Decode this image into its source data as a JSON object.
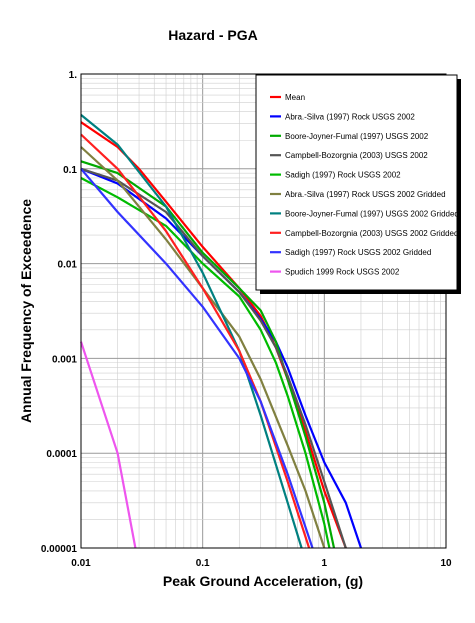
{
  "chart_data": {
    "type": "line",
    "title": "Hazard - PGA",
    "xlabel": "Peak Ground Acceleration, (g)",
    "ylabel": "Annual Frequency of Exceedence",
    "x_scale": "log",
    "y_scale": "log",
    "xlim": [
      0.01,
      10
    ],
    "ylim": [
      1e-05,
      1
    ],
    "x_ticks": [
      {
        "value": 0.01,
        "label": "0.01"
      },
      {
        "value": 0.1,
        "label": "0.1"
      },
      {
        "value": 1,
        "label": "1"
      },
      {
        "value": 10,
        "label": "10"
      }
    ],
    "y_ticks": [
      {
        "value": 1,
        "label": "1."
      },
      {
        "value": 0.1,
        "label": "0.1"
      },
      {
        "value": 0.01,
        "label": "0.01"
      },
      {
        "value": 0.001,
        "label": "0.001"
      },
      {
        "value": 0.0001,
        "label": "0.0001"
      },
      {
        "value": 1e-05,
        "label": "0.00001"
      }
    ],
    "grid": true,
    "legend_position": "top-right",
    "series": [
      {
        "name": "Mean",
        "color": "#ff0000",
        "points": [
          [
            0.01,
            0.31
          ],
          [
            0.02,
            0.17
          ],
          [
            0.03,
            0.1
          ],
          [
            0.05,
            0.045
          ],
          [
            0.1,
            0.015
          ],
          [
            0.2,
            0.0055
          ],
          [
            0.3,
            0.0028
          ],
          [
            0.4,
            0.0013
          ],
          [
            0.5,
            0.0006
          ],
          [
            0.7,
            0.00017
          ],
          [
            1.0,
            4e-05
          ],
          [
            1.5,
            1e-05
          ]
        ]
      },
      {
        "name": "Abra.-Silva (1997) Rock USGS 2002",
        "color": "#0000ff",
        "points": [
          [
            0.01,
            0.1
          ],
          [
            0.02,
            0.07
          ],
          [
            0.05,
            0.03
          ],
          [
            0.1,
            0.012
          ],
          [
            0.2,
            0.005
          ],
          [
            0.3,
            0.0026
          ],
          [
            0.4,
            0.0015
          ],
          [
            0.5,
            0.0008
          ],
          [
            0.7,
            0.00025
          ],
          [
            1.0,
            8e-05
          ],
          [
            1.5,
            3e-05
          ],
          [
            2.0,
            1e-05
          ]
        ]
      },
      {
        "name": "Boore-Joyner-Fumal (1997) USGS 2002",
        "color": "#00aa00",
        "points": [
          [
            0.01,
            0.12
          ],
          [
            0.02,
            0.09
          ],
          [
            0.05,
            0.04
          ],
          [
            0.1,
            0.013
          ],
          [
            0.2,
            0.0055
          ],
          [
            0.3,
            0.0032
          ],
          [
            0.4,
            0.0015
          ],
          [
            0.5,
            0.0006
          ],
          [
            0.7,
            0.00015
          ],
          [
            1.0,
            3e-05
          ],
          [
            1.2,
            1e-05
          ]
        ]
      },
      {
        "name": "Campbell-Bozorgnia (2003) USGS 2002",
        "color": "#555555",
        "points": [
          [
            0.01,
            0.1
          ],
          [
            0.02,
            0.075
          ],
          [
            0.05,
            0.035
          ],
          [
            0.1,
            0.012
          ],
          [
            0.2,
            0.005
          ],
          [
            0.3,
            0.0025
          ],
          [
            0.4,
            0.0013
          ],
          [
            0.5,
            0.00065
          ],
          [
            0.7,
            0.0002
          ],
          [
            1.0,
            5e-05
          ],
          [
            1.5,
            1e-05
          ]
        ]
      },
      {
        "name": "Sadigh (1997) Rock USGS 2002",
        "color": "#00bb00",
        "points": [
          [
            0.01,
            0.08
          ],
          [
            0.02,
            0.05
          ],
          [
            0.05,
            0.025
          ],
          [
            0.1,
            0.01
          ],
          [
            0.2,
            0.0045
          ],
          [
            0.3,
            0.002
          ],
          [
            0.4,
            0.0009
          ],
          [
            0.5,
            0.0004
          ],
          [
            0.7,
            0.0001
          ],
          [
            1.0,
            1.8e-05
          ],
          [
            1.1,
            1e-05
          ]
        ]
      },
      {
        "name": "Abra.-Silva (1997) Rock USGS 2002 Gridded",
        "color": "#808040",
        "points": [
          [
            0.01,
            0.17
          ],
          [
            0.02,
            0.075
          ],
          [
            0.05,
            0.018
          ],
          [
            0.1,
            0.0055
          ],
          [
            0.2,
            0.0017
          ],
          [
            0.3,
            0.0006
          ],
          [
            0.5,
            0.00012
          ],
          [
            0.7,
            4e-05
          ],
          [
            1.0,
            1e-05
          ]
        ]
      },
      {
        "name": "Boore-Joyner-Fumal (1997) USGS 2002 Gridded",
        "color": "#008080",
        "points": [
          [
            0.01,
            0.37
          ],
          [
            0.02,
            0.18
          ],
          [
            0.05,
            0.04
          ],
          [
            0.1,
            0.008
          ],
          [
            0.2,
            0.0012
          ],
          [
            0.3,
            0.00025
          ],
          [
            0.5,
            3e-05
          ],
          [
            0.65,
            1e-05
          ]
        ]
      },
      {
        "name": "Campbell-Bozorgnia (2003) USGS 2002 Gridded",
        "color": "#ff2020",
        "points": [
          [
            0.01,
            0.23
          ],
          [
            0.02,
            0.1
          ],
          [
            0.05,
            0.022
          ],
          [
            0.1,
            0.0055
          ],
          [
            0.2,
            0.0012
          ],
          [
            0.3,
            0.00035
          ],
          [
            0.5,
            5e-05
          ],
          [
            0.75,
            1e-05
          ]
        ]
      },
      {
        "name": "Sadigh (1997) Rock USGS 2002 Gridded",
        "color": "#3333ff",
        "points": [
          [
            0.01,
            0.1
          ],
          [
            0.02,
            0.035
          ],
          [
            0.05,
            0.01
          ],
          [
            0.1,
            0.0035
          ],
          [
            0.2,
            0.001
          ],
          [
            0.3,
            0.00035
          ],
          [
            0.5,
            6e-05
          ],
          [
            0.8,
            1e-05
          ]
        ]
      },
      {
        "name": "Spudich 1999 Rock USGS 2002",
        "color": "#ee55ee",
        "points": [
          [
            0.01,
            0.0015
          ],
          [
            0.02,
            0.0001
          ],
          [
            0.028,
            1e-05
          ]
        ]
      }
    ]
  }
}
